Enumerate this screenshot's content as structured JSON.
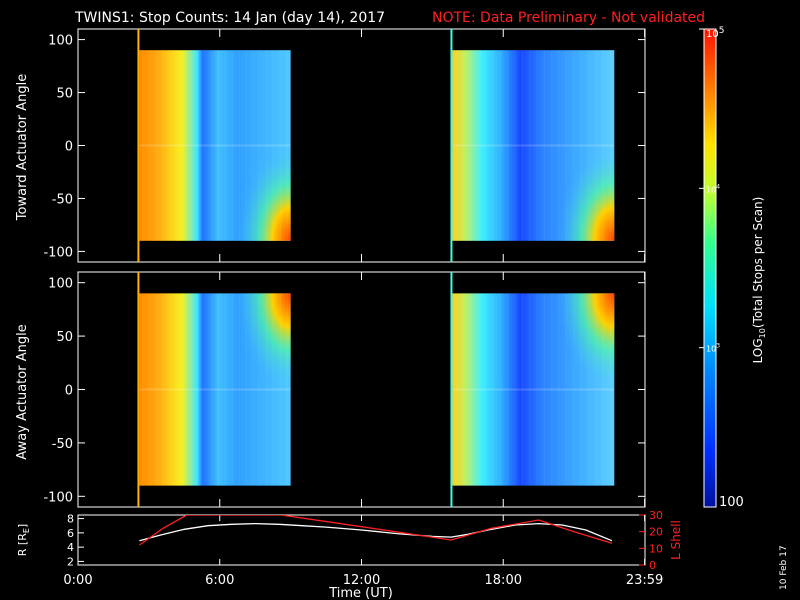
{
  "title": "TWINS1: Stop Counts: 14 Jan (day  14), 2017",
  "note": "NOTE: Data Preliminary - Not validated",
  "date_stamp": "10 Feb 17",
  "colors": {
    "background": "#000000",
    "text": "#ffffff",
    "note": "#ff2020",
    "rshell_line": "#ffffff",
    "lshell_line": "#ff2020"
  },
  "chart_data": [
    {
      "type": "heatmap",
      "panel": "toward",
      "ylabel": "Toward Actuator Angle",
      "ylim": [
        -110,
        110
      ],
      "yticks": [
        "100",
        "50",
        "0",
        "-50",
        "-100"
      ],
      "xlim_hours": [
        0,
        24
      ],
      "xticks": [
        "0:00",
        "6:00",
        "12:00",
        "18:00",
        "23:59"
      ],
      "scan_blocks": [
        {
          "start_hour": 2.6,
          "end_hour": 9.0,
          "angle_range": [
            -90,
            90
          ]
        },
        {
          "start_hour": 15.85,
          "end_hour": 22.7,
          "angle_range": [
            -90,
            90
          ]
        }
      ]
    },
    {
      "type": "heatmap",
      "panel": "away",
      "ylabel": "Away Actuator Angle",
      "ylim": [
        -110,
        110
      ],
      "yticks": [
        "100",
        "50",
        "0",
        "-50",
        "-100"
      ],
      "xlim_hours": [
        0,
        24
      ],
      "xticks": [
        "0:00",
        "6:00",
        "12:00",
        "18:00",
        "23:59"
      ],
      "scan_blocks": [
        {
          "start_hour": 2.6,
          "end_hour": 9.0,
          "angle_range": [
            -90,
            90
          ]
        },
        {
          "start_hour": 15.85,
          "end_hour": 22.7,
          "angle_range": [
            -90,
            90
          ]
        }
      ]
    },
    {
      "type": "line",
      "panel": "ephemeris",
      "xlabel": "Time (UT)",
      "ylabel_left": "R [R",
      "ylabel_left_sub": "E",
      "ylabel_left_close": "]",
      "ylabel_right": "L Shell",
      "left_yticks": [
        "8",
        "6",
        "4",
        "2"
      ],
      "left_ylim": [
        1.5,
        8.5
      ],
      "right_yticks": [
        "30",
        "20",
        "10",
        "0"
      ],
      "right_ylim": [
        0,
        30
      ],
      "xticks": [
        "0:00",
        "6:00",
        "12:00",
        "18:00",
        "23:59"
      ],
      "series": [
        {
          "axis": "left",
          "x": [
            2.6,
            3.5,
            4.5,
            5.5,
            6.5,
            7.5,
            8.5,
            9.5,
            10.5,
            12,
            13.5,
            15,
            15.8,
            16.5,
            17.5,
            18.5,
            19.5,
            20.5,
            21.5,
            22.6
          ],
          "y": [
            4.9,
            5.7,
            6.5,
            7.0,
            7.2,
            7.3,
            7.2,
            7.0,
            6.8,
            6.4,
            5.9,
            5.5,
            5.4,
            5.8,
            6.5,
            7.1,
            7.3,
            7.1,
            6.4,
            4.9
          ]
        },
        {
          "axis": "right",
          "x": [
            2.6,
            3.6,
            4.6,
            5.0,
            8.0,
            8.6,
            12,
            15.8,
            17.5,
            19.5,
            21.0,
            22.6
          ],
          "y": [
            12,
            22,
            30,
            30,
            30,
            30,
            23,
            15,
            22,
            27,
            20,
            13
          ]
        }
      ]
    }
  ],
  "colorbar": {
    "label": "LOG",
    "label_sub": "10",
    "label_rest": "(Total Stops per Scan)",
    "tick_top_base": "10",
    "tick_top_exp": "5",
    "tick_mid_base": "10",
    "tick_mid_exp": "4",
    "tick_low_base": "10",
    "tick_low_exp": "3",
    "tick_bottom": "100",
    "log_range": [
      2,
      5
    ]
  }
}
